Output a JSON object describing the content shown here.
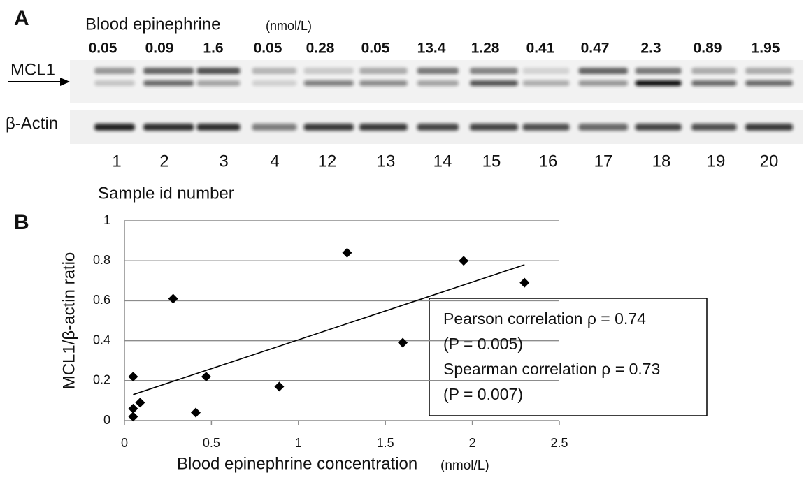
{
  "chart_data": [
    {
      "type": "blot",
      "panel_label": "A",
      "title": "Blood epinephrine",
      "title_unit": "(nmol/L)",
      "lane_values": [
        "0.05",
        "0.09",
        "1.6",
        "0.05",
        "0.28",
        "0.05",
        "13.4",
        "1.28",
        "0.41",
        "0.47",
        "2.3",
        "0.89",
        "1.95"
      ],
      "rows": [
        "MCL1",
        "β-Actin"
      ],
      "categories": [
        "1",
        "2",
        "3",
        "4",
        "12",
        "13",
        "14",
        "15",
        "16",
        "17",
        "18",
        "19",
        "20"
      ],
      "x_label": "Sample id number"
    },
    {
      "type": "scatter",
      "panel_label": "B",
      "x_label": "Blood epinephrine concentration",
      "x_label_unit": "(nmol/L)",
      "y_label": "MCL1/β-actin ratio",
      "x": [
        0.05,
        0.05,
        0.05,
        0.09,
        0.28,
        0.41,
        0.47,
        0.89,
        1.28,
        1.6,
        1.95,
        2.3
      ],
      "values": [
        0.22,
        0.02,
        0.06,
        0.09,
        0.61,
        0.04,
        0.22,
        0.17,
        0.84,
        0.39,
        0.8,
        0.69
      ],
      "color": "#000000",
      "trendline": {
        "x": [
          0.05,
          2.3
        ],
        "y": [
          0.13,
          0.78
        ],
        "color": "#000000"
      },
      "xlim": [
        0,
        2.5
      ],
      "ylim": [
        0,
        1
      ],
      "xticks": [
        0,
        0.5,
        1,
        1.5,
        2,
        2.5
      ],
      "yticks": [
        0,
        0.2,
        0.4,
        0.6,
        0.8,
        1
      ],
      "grid": true,
      "annotations": [
        "Pearson correlation ρ = 0.74",
        "(P = 0.005)",
        "Spearman correlation ρ = 0.73",
        "(P = 0.007)"
      ]
    }
  ]
}
